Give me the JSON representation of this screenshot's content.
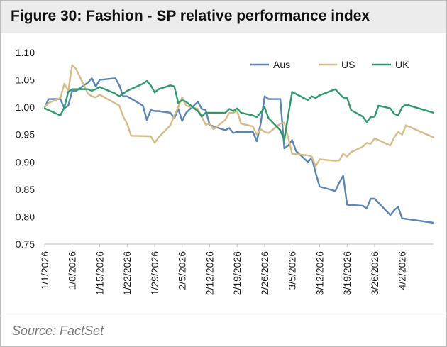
{
  "figure": {
    "title": "Figure 30: Fashion - SP relative performance index",
    "source": "Source: FactSet"
  },
  "chart_data": {
    "type": "line",
    "title": "",
    "xlabel": "",
    "ylabel": "",
    "ylim": [
      0.75,
      1.1
    ],
    "y_ticks": [
      "0.75",
      "0.80",
      "0.85",
      "0.90",
      "0.95",
      "1.00",
      "1.05",
      "1.10"
    ],
    "x_range": [
      "1/1/2026",
      "4/10/2026"
    ],
    "x_tick_labels": [
      "1/1/2026",
      "1/8/2026",
      "1/15/2026",
      "1/22/2026",
      "1/29/2026",
      "2/5/2026",
      "2/12/2026",
      "2/19/2026",
      "2/26/2026",
      "3/5/2026",
      "3/12/2026",
      "3/19/2026",
      "3/26/2026",
      "4/2/2026"
    ],
    "grid": false,
    "legend_position": "top-right",
    "series": [
      {
        "name": "Aus",
        "color": "#5b86b5",
        "points": [
          [
            "1/1/2026",
            1.0
          ],
          [
            "1/2/2026",
            1.015
          ],
          [
            "1/5/2026",
            1.015
          ],
          [
            "1/6/2026",
            0.998
          ],
          [
            "1/7/2026",
            1.003
          ],
          [
            "1/8/2026",
            1.03
          ],
          [
            "1/9/2026",
            1.03
          ],
          [
            "1/12/2026",
            1.045
          ],
          [
            "1/13/2026",
            1.053
          ],
          [
            "1/14/2026",
            1.038
          ],
          [
            "1/15/2026",
            1.05
          ],
          [
            "1/19/2026",
            1.053
          ],
          [
            "1/20/2026",
            1.04
          ],
          [
            "1/21/2026",
            1.02
          ],
          [
            "1/22/2026",
            1.02
          ],
          [
            "1/26/2026",
            1.003
          ],
          [
            "1/27/2026",
            0.977
          ],
          [
            "1/28/2026",
            0.995
          ],
          [
            "1/29/2026",
            0.993
          ],
          [
            "1/30/2026",
            0.993
          ],
          [
            "2/2/2026",
            0.99
          ],
          [
            "2/3/2026",
            0.98
          ],
          [
            "2/4/2026",
            0.997
          ],
          [
            "2/5/2026",
            0.975
          ],
          [
            "2/6/2026",
            0.99
          ],
          [
            "2/9/2026",
            1.01
          ],
          [
            "2/10/2026",
            0.997
          ],
          [
            "2/11/2026",
            0.995
          ],
          [
            "2/12/2026",
            0.968
          ],
          [
            "2/13/2026",
            0.965
          ],
          [
            "2/16/2026",
            0.958
          ],
          [
            "2/17/2026",
            0.962
          ],
          [
            "2/18/2026",
            0.953
          ],
          [
            "2/19/2026",
            0.955
          ],
          [
            "2/20/2026",
            0.955
          ],
          [
            "2/23/2026",
            0.955
          ],
          [
            "2/24/2026",
            0.938
          ],
          [
            "2/25/2026",
            0.97
          ],
          [
            "2/26/2026",
            1.02
          ],
          [
            "2/27/2026",
            1.015
          ],
          [
            "3/2/2026",
            1.015
          ],
          [
            "3/3/2026",
            0.925
          ],
          [
            "3/4/2026",
            0.93
          ],
          [
            "3/5/2026",
            0.94
          ],
          [
            "3/6/2026",
            0.92
          ],
          [
            "3/9/2026",
            0.9
          ],
          [
            "3/10/2026",
            0.908
          ],
          [
            "3/11/2026",
            0.88
          ],
          [
            "3/12/2026",
            0.855
          ],
          [
            "3/16/2026",
            0.847
          ],
          [
            "3/17/2026",
            0.862
          ],
          [
            "3/18/2026",
            0.875
          ],
          [
            "3/19/2026",
            0.822
          ],
          [
            "3/23/2026",
            0.82
          ],
          [
            "3/24/2026",
            0.815
          ],
          [
            "3/25/2026",
            0.833
          ],
          [
            "3/26/2026",
            0.833
          ],
          [
            "3/30/2026",
            0.803
          ],
          [
            "3/31/2026",
            0.812
          ],
          [
            "4/1/2026",
            0.818
          ],
          [
            "4/2/2026",
            0.797
          ],
          [
            "4/10/2026",
            0.789
          ]
        ]
      },
      {
        "name": "US",
        "color": "#d7bc8a",
        "points": [
          [
            "1/1/2026",
            1.0
          ],
          [
            "1/2/2026",
            1.008
          ],
          [
            "1/5/2026",
            1.017
          ],
          [
            "1/6/2026",
            1.043
          ],
          [
            "1/7/2026",
            1.03
          ],
          [
            "1/8/2026",
            1.077
          ],
          [
            "1/9/2026",
            1.07
          ],
          [
            "1/12/2026",
            1.025
          ],
          [
            "1/13/2026",
            1.02
          ],
          [
            "1/14/2026",
            1.018
          ],
          [
            "1/15/2026",
            1.023
          ],
          [
            "1/19/2026",
            1.007
          ],
          [
            "1/20/2026",
            1.003
          ],
          [
            "1/21/2026",
            0.983
          ],
          [
            "1/22/2026",
            0.97
          ],
          [
            "1/23/2026",
            0.948
          ],
          [
            "1/28/2026",
            0.947
          ],
          [
            "1/29/2026",
            0.935
          ],
          [
            "1/30/2026",
            0.945
          ],
          [
            "2/2/2026",
            0.967
          ],
          [
            "2/3/2026",
            0.985
          ],
          [
            "2/4/2026",
            1.0
          ],
          [
            "2/5/2026",
            1.018
          ],
          [
            "2/6/2026",
            1.003
          ],
          [
            "2/9/2026",
            0.997
          ],
          [
            "2/10/2026",
            0.982
          ],
          [
            "2/11/2026",
            0.968
          ],
          [
            "2/12/2026",
            0.97
          ],
          [
            "2/13/2026",
            0.96
          ],
          [
            "2/16/2026",
            0.977
          ],
          [
            "2/17/2026",
            0.99
          ],
          [
            "2/18/2026",
            0.99
          ],
          [
            "2/19/2026",
            0.993
          ],
          [
            "2/20/2026",
            0.97
          ],
          [
            "2/23/2026",
            0.965
          ],
          [
            "2/24/2026",
            0.95
          ],
          [
            "2/25/2026",
            0.96
          ],
          [
            "2/26/2026",
            0.955
          ],
          [
            "2/27/2026",
            0.953
          ],
          [
            "3/2/2026",
            0.97
          ],
          [
            "3/3/2026",
            0.972
          ],
          [
            "3/4/2026",
            0.945
          ],
          [
            "3/5/2026",
            0.915
          ],
          [
            "3/9/2026",
            0.912
          ],
          [
            "3/10/2026",
            0.91
          ],
          [
            "3/11/2026",
            0.892
          ],
          [
            "3/12/2026",
            0.905
          ],
          [
            "3/16/2026",
            0.902
          ],
          [
            "3/17/2026",
            0.903
          ],
          [
            "3/18/2026",
            0.915
          ],
          [
            "3/19/2026",
            0.91
          ],
          [
            "3/20/2026",
            0.918
          ],
          [
            "3/23/2026",
            0.928
          ],
          [
            "3/24/2026",
            0.935
          ],
          [
            "3/25/2026",
            0.933
          ],
          [
            "3/26/2026",
            0.943
          ],
          [
            "3/27/2026",
            0.94
          ],
          [
            "3/30/2026",
            0.93
          ],
          [
            "3/31/2026",
            0.945
          ],
          [
            "4/1/2026",
            0.955
          ],
          [
            "4/2/2026",
            0.95
          ],
          [
            "4/3/2026",
            0.967
          ],
          [
            "4/10/2026",
            0.945
          ]
        ]
      },
      {
        "name": "UK",
        "color": "#2e9a6c",
        "points": [
          [
            "1/1/2026",
            0.998
          ],
          [
            "1/5/2026",
            0.985
          ],
          [
            "1/6/2026",
            1.0
          ],
          [
            "1/7/2026",
            1.028
          ],
          [
            "1/8/2026",
            1.033
          ],
          [
            "1/12/2026",
            1.033
          ],
          [
            "1/13/2026",
            1.03
          ],
          [
            "1/14/2026",
            1.033
          ],
          [
            "1/15/2026",
            1.037
          ],
          [
            "1/19/2026",
            1.025
          ],
          [
            "1/20/2026",
            1.02
          ],
          [
            "1/21/2026",
            1.025
          ],
          [
            "1/22/2026",
            1.03
          ],
          [
            "1/26/2026",
            1.043
          ],
          [
            "1/27/2026",
            1.048
          ],
          [
            "1/28/2026",
            1.04
          ],
          [
            "1/29/2026",
            1.027
          ],
          [
            "1/30/2026",
            1.033
          ],
          [
            "2/2/2026",
            1.04
          ],
          [
            "2/3/2026",
            1.038
          ],
          [
            "2/4/2026",
            1.008
          ],
          [
            "2/5/2026",
            1.013
          ],
          [
            "2/6/2026",
            1.01
          ],
          [
            "2/9/2026",
            0.993
          ],
          [
            "2/10/2026",
            0.983
          ],
          [
            "2/11/2026",
            0.99
          ],
          [
            "2/12/2026",
            0.99
          ],
          [
            "2/16/2026",
            0.99
          ],
          [
            "2/17/2026",
            0.997
          ],
          [
            "2/18/2026",
            0.993
          ],
          [
            "2/19/2026",
            0.998
          ],
          [
            "2/20/2026",
            0.99
          ],
          [
            "2/23/2026",
            0.985
          ],
          [
            "2/24/2026",
            0.982
          ],
          [
            "2/25/2026",
            0.99
          ],
          [
            "2/26/2026",
            1.0
          ],
          [
            "2/27/2026",
            0.98
          ],
          [
            "3/2/2026",
            0.958
          ],
          [
            "3/3/2026",
            0.94
          ],
          [
            "3/4/2026",
            0.985
          ],
          [
            "3/5/2026",
            1.028
          ],
          [
            "3/9/2026",
            1.013
          ],
          [
            "3/10/2026",
            1.02
          ],
          [
            "3/11/2026",
            1.017
          ],
          [
            "3/12/2026",
            1.022
          ],
          [
            "3/16/2026",
            1.033
          ],
          [
            "3/17/2026",
            1.025
          ],
          [
            "3/18/2026",
            1.018
          ],
          [
            "3/19/2026",
            1.017
          ],
          [
            "3/20/2026",
            0.995
          ],
          [
            "3/23/2026",
            0.983
          ],
          [
            "3/24/2026",
            0.973
          ],
          [
            "3/25/2026",
            0.982
          ],
          [
            "3/26/2026",
            0.983
          ],
          [
            "3/27/2026",
            1.003
          ],
          [
            "3/30/2026",
            0.998
          ],
          [
            "3/31/2026",
            0.988
          ],
          [
            "4/1/2026",
            0.985
          ],
          [
            "4/2/2026",
            1.0
          ],
          [
            "4/3/2026",
            1.005
          ],
          [
            "4/10/2026",
            0.99
          ]
        ]
      }
    ]
  }
}
